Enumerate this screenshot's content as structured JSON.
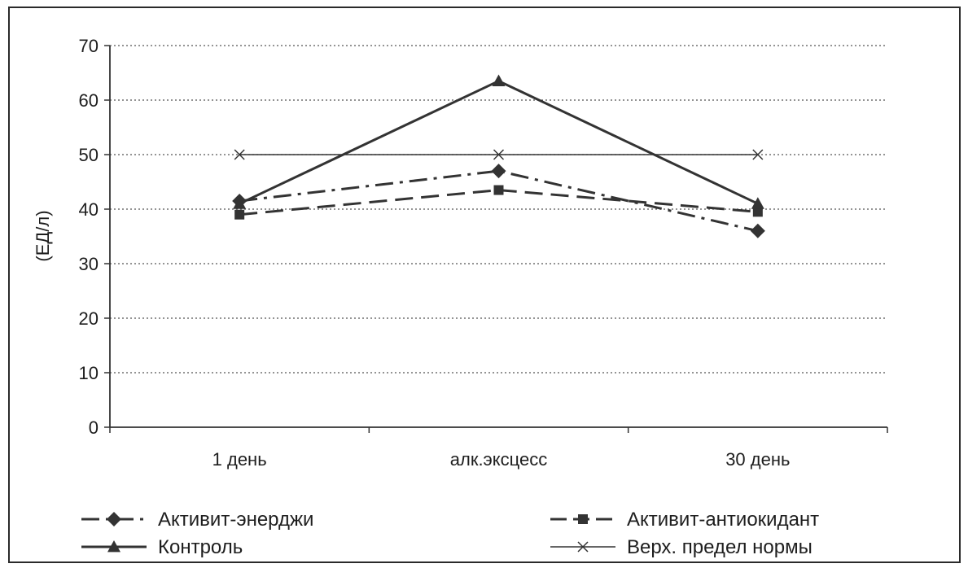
{
  "chart_data": {
    "type": "line",
    "categories": [
      "1 день",
      "алк.эксцесс",
      "30 день"
    ],
    "ylabel": "(ЕД/л)",
    "xlabel": "",
    "title": "",
    "ylim": [
      0,
      70
    ],
    "yticks": [
      0,
      10,
      20,
      30,
      40,
      50,
      60,
      70
    ],
    "grid": true,
    "legend_position": "bottom",
    "series": [
      {
        "name": "Активит-энерджи",
        "values": [
          41.5,
          47,
          36
        ],
        "marker": "diamond",
        "dash": "dashdot",
        "color": "#333333"
      },
      {
        "name": "Активит-антиокидант",
        "values": [
          39,
          43.5,
          39.5
        ],
        "marker": "square",
        "dash": "dashed",
        "color": "#333333"
      },
      {
        "name": "Контроль",
        "values": [
          41,
          63.5,
          41
        ],
        "marker": "triangle",
        "dash": "solid",
        "color": "#333333"
      },
      {
        "name": "Верх. предел нормы",
        "values": [
          50,
          50,
          50
        ],
        "marker": "x",
        "dash": "solid-thin",
        "color": "#333333"
      }
    ]
  }
}
